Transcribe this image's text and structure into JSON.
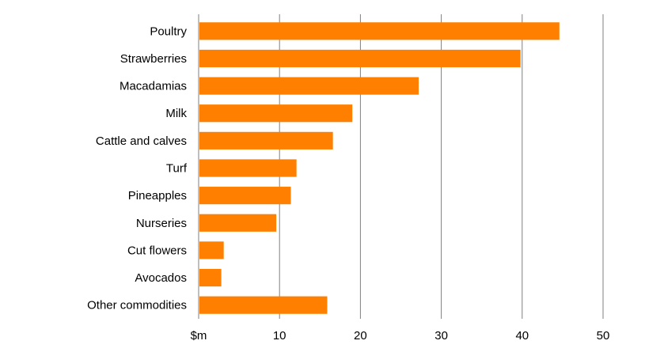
{
  "chart_data": {
    "type": "bar",
    "orientation": "horizontal",
    "title": "",
    "xlabel": "",
    "ylabel": "",
    "unit_label": "$m",
    "categories": [
      "Poultry",
      "Strawberries",
      "Macadamias",
      "Milk",
      "Cattle and calves",
      "Turf",
      "Pineapples",
      "Nurseries",
      "Cut flowers",
      "Avocados",
      "Other commodities"
    ],
    "values": [
      44.6,
      39.8,
      27.2,
      19.0,
      16.6,
      12.1,
      11.4,
      9.6,
      3.1,
      2.8,
      15.9
    ],
    "xlim": [
      0,
      50
    ],
    "xticks": [
      10,
      20,
      30,
      40,
      50
    ],
    "grid": true,
    "bar_color": "#ff7f00",
    "grid_color": "#7f7f7f"
  }
}
